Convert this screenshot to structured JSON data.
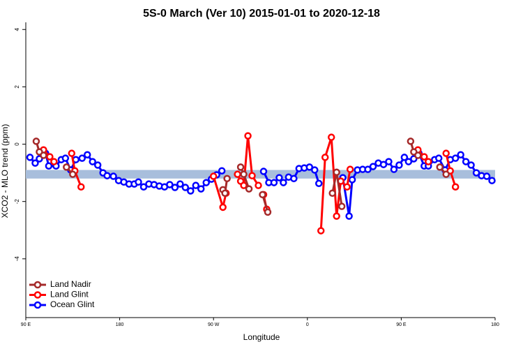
{
  "chart_data": {
    "type": "line",
    "title": "5S-0 March (Ver 10)   2015-01-01 to 2020-12-18",
    "x_label": "Longitude",
    "y_label": "XCO2 - MLO trend (ppm)",
    "xlim": [
      90,
      540
    ],
    "ylim": [
      -6.05,
      4.25
    ],
    "xticks": [
      {
        "value": 90,
        "label": "90 E"
      },
      180,
      {
        "value": 270,
        "label": "90 W"
      },
      {
        "value": 360,
        "label": "0"
      },
      {
        "value": 450,
        "label": "90 E"
      },
      {
        "value": 540,
        "label": "180"
      }
    ],
    "yticks": [
      -4,
      -2,
      0,
      2,
      4
    ],
    "band": [
      -1.2,
      -0.9
    ],
    "band_color": "#a8bedc",
    "legend": "bottom-left",
    "series": [
      {
        "name": "Land Nadir",
        "color": "#a52a2a",
        "x": [
          100,
          103,
          107,
          null,
          129,
          135,
          null,
          279,
          281,
          283,
          null,
          296,
          299,
          304,
          null,
          317,
          322,
          null,
          384,
          388,
          393,
          null,
          459,
          462,
          466,
          null,
          487,
          493
        ],
        "values": [
          0.1,
          -0.27,
          -0.39,
          null,
          -0.8,
          -1.05,
          null,
          -1.59,
          -1.71,
          -1.2,
          null,
          -0.8,
          -1.05,
          -1.56,
          null,
          -1.76,
          -2.37,
          null,
          -1.71,
          -0.98,
          -2.17,
          null,
          0.1,
          -0.27,
          -0.39,
          null,
          -0.8,
          -1.05
        ]
      },
      {
        "name": "Land Glint",
        "color": "#ff0000",
        "x": [
          107,
          113,
          117,
          null,
          134,
          137,
          143,
          null,
          270,
          279,
          282,
          null,
          293,
          296,
          299,
          303,
          307,
          313,
          null,
          318,
          321,
          null,
          373,
          377,
          383,
          388,
          392,
          398,
          401,
          null,
          466,
          472,
          476,
          null,
          493,
          497,
          502
        ],
        "values": [
          -0.2,
          -0.44,
          -0.61,
          null,
          -0.32,
          -0.93,
          -1.49,
          null,
          -1.12,
          -2.2,
          -1.71,
          null,
          -1.05,
          -1.29,
          -1.44,
          0.29,
          -1.1,
          -1.44,
          null,
          -1.76,
          -2.27,
          null,
          -3.02,
          -0.46,
          0.24,
          -2.51,
          -1.29,
          -1.49,
          -0.88,
          null,
          -0.2,
          -0.44,
          -0.61,
          null,
          -0.32,
          -0.93,
          -1.49
        ]
      },
      {
        "name": "Ocean Glint",
        "color": "#0000ff",
        "x": [
          94,
          99,
          103,
          109,
          112,
          119,
          124,
          128,
          133,
          138,
          144,
          149,
          154,
          159,
          164,
          168,
          174,
          179,
          184,
          189,
          194,
          198,
          203,
          208,
          213,
          218,
          223,
          228,
          233,
          238,
          243,
          248,
          253,
          258,
          263,
          268,
          273,
          278,
          null,
          318,
          323,
          328,
          333,
          337,
          342,
          347,
          352,
          357,
          362,
          367,
          371,
          null,
          394,
          400,
          403,
          408,
          413,
          418,
          423,
          428,
          433,
          438,
          443,
          448,
          453,
          457,
          462,
          467,
          472,
          476,
          482,
          486,
          492,
          497,
          502,
          507,
          512,
          517,
          522,
          527,
          532,
          537
        ],
        "values": [
          -0.46,
          -0.66,
          -0.51,
          -0.32,
          -0.76,
          -0.76,
          -0.54,
          -0.49,
          -0.9,
          -0.54,
          -0.49,
          -0.37,
          -0.61,
          -0.73,
          -1.0,
          -1.1,
          -1.12,
          -1.27,
          -1.32,
          -1.39,
          -1.39,
          -1.32,
          -1.49,
          -1.39,
          -1.41,
          -1.46,
          -1.49,
          -1.41,
          -1.51,
          -1.39,
          -1.51,
          -1.63,
          -1.44,
          -1.56,
          -1.34,
          -1.22,
          -1.07,
          -0.93,
          null,
          -0.95,
          -1.34,
          -1.34,
          -1.17,
          -1.34,
          -1.15,
          -1.2,
          -0.85,
          -0.83,
          -0.8,
          -0.9,
          -1.37,
          null,
          -1.17,
          -2.51,
          -1.24,
          -0.9,
          -0.88,
          -0.88,
          -0.78,
          -0.66,
          -0.71,
          -0.61,
          -0.88,
          -0.73,
          -0.46,
          -0.61,
          -0.51,
          -0.32,
          -0.76,
          -0.76,
          -0.54,
          -0.49,
          -0.9,
          -0.54,
          -0.49,
          -0.37,
          -0.61,
          -0.73,
          -1.0,
          -1.1,
          -1.12,
          -1.27
        ]
      }
    ]
  }
}
